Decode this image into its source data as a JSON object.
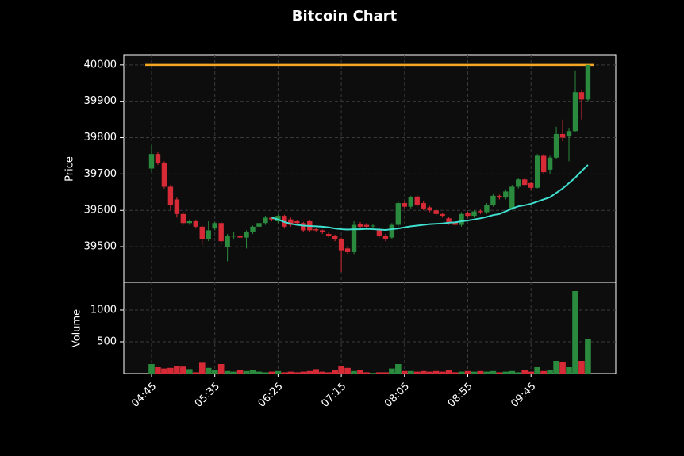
{
  "chart_data": {
    "type": "candlestick",
    "title": "Bitcoin Chart",
    "ylabel": "Price",
    "volume_ylabel": "Volume",
    "x": [
      "04:45",
      null,
      null,
      null,
      null,
      null,
      null,
      null,
      null,
      null,
      "05:35",
      null,
      null,
      null,
      null,
      null,
      null,
      null,
      null,
      null,
      "06:25",
      null,
      null,
      null,
      null,
      null,
      null,
      null,
      null,
      null,
      "07:15",
      null,
      null,
      null,
      null,
      null,
      null,
      null,
      null,
      null,
      "08:05",
      null,
      null,
      null,
      null,
      null,
      null,
      null,
      null,
      null,
      "08:55",
      null,
      null,
      null,
      null,
      null,
      null,
      null,
      null,
      null,
      "09:45",
      null,
      null,
      null,
      null,
      null,
      null,
      null,
      null,
      null
    ],
    "open": [
      39715,
      39755,
      39730,
      39665,
      39630,
      39590,
      39565,
      39570,
      39555,
      39520,
      39550,
      39565,
      39500,
      39528,
      39530,
      39525,
      39540,
      39555,
      39565,
      39580,
      39570,
      39585,
      39575,
      39570,
      39565,
      39570,
      39548,
      39545,
      39535,
      39530,
      39520,
      39495,
      39485,
      39562,
      39560,
      39556,
      39545,
      39530,
      39525,
      39560,
      39620,
      39610,
      39638,
      39620,
      39608,
      39600,
      39590,
      39578,
      39568,
      39560,
      39592,
      39585,
      39598,
      39595,
      39615,
      39640,
      39635,
      39605,
      39665,
      39685,
      39675,
      39662,
      39750,
      39712,
      39745,
      39810,
      39803,
      39818,
      39925,
      39905
    ],
    "high": [
      39780,
      39760,
      39735,
      39670,
      39635,
      39595,
      39575,
      39572,
      39558,
      39570,
      39568,
      39570,
      39535,
      39540,
      39535,
      39545,
      39558,
      39568,
      39585,
      39582,
      39590,
      39588,
      39580,
      39573,
      39568,
      39572,
      39552,
      39547,
      39540,
      39533,
      39525,
      39500,
      39570,
      39568,
      39565,
      39562,
      39550,
      39535,
      39565,
      39625,
      39624,
      39640,
      39642,
      39625,
      39612,
      39603,
      39593,
      39582,
      39570,
      39595,
      39596,
      39600,
      39602,
      39620,
      39645,
      39643,
      39658,
      39670,
      39690,
      39690,
      39678,
      39755,
      39755,
      39750,
      39830,
      39850,
      39825,
      39985,
      39930,
      40000
    ],
    "low": [
      39705,
      39725,
      39660,
      39600,
      39580,
      39560,
      39560,
      39550,
      39505,
      39515,
      39545,
      39505,
      39460,
      39522,
      39520,
      39495,
      39535,
      39550,
      39560,
      39570,
      39565,
      39550,
      39555,
      39560,
      39540,
      39540,
      39540,
      39535,
      39525,
      39515,
      39430,
      39480,
      39480,
      39550,
      39550,
      39552,
      39525,
      39515,
      39520,
      39555,
      39605,
      39605,
      39610,
      39600,
      39595,
      39585,
      39580,
      39560,
      39555,
      39555,
      39580,
      39580,
      39590,
      39590,
      39610,
      39630,
      39630,
      39600,
      39660,
      39665,
      39655,
      39660,
      39700,
      39700,
      39740,
      39790,
      39735,
      39815,
      39850,
      39900
    ],
    "close": [
      39755,
      39730,
      39665,
      39615,
      39590,
      39565,
      39570,
      39555,
      39520,
      39545,
      39565,
      39515,
      39530,
      39530,
      39525,
      39540,
      39555,
      39565,
      39580,
      39575,
      39585,
      39555,
      39560,
      39565,
      39545,
      39545,
      39545,
      39540,
      39530,
      39520,
      39490,
      39485,
      39560,
      39555,
      39555,
      39558,
      39530,
      39522,
      39560,
      39620,
      39610,
      39637,
      39615,
      39605,
      39600,
      39590,
      39585,
      39565,
      39560,
      39590,
      39585,
      39597,
      39595,
      39615,
      39640,
      39635,
      39652,
      39665,
      39685,
      39670,
      39662,
      39750,
      39705,
      39745,
      39810,
      39800,
      39818,
      39925,
      39905,
      40000
    ],
    "volume": [
      150,
      100,
      80,
      90,
      120,
      110,
      70,
      20,
      170,
      90,
      60,
      150,
      40,
      30,
      50,
      40,
      50,
      30,
      20,
      30,
      40,
      20,
      30,
      20,
      30,
      40,
      70,
      30,
      20,
      60,
      120,
      90,
      40,
      50,
      20,
      10,
      20,
      20,
      80,
      150,
      40,
      40,
      30,
      40,
      30,
      40,
      30,
      60,
      20,
      30,
      40,
      30,
      40,
      30,
      40,
      20,
      30,
      40,
      20,
      50,
      30,
      100,
      40,
      60,
      200,
      180,
      100,
      1300,
      200,
      540
    ],
    "moving_average": {
      "color": "#40e0d0",
      "values": [
        null,
        null,
        null,
        null,
        null,
        null,
        null,
        null,
        null,
        null,
        null,
        null,
        null,
        null,
        null,
        null,
        null,
        null,
        null,
        39580,
        39575,
        39568,
        39563,
        39560,
        39558,
        39557,
        39556,
        39555,
        39553,
        39550,
        39548,
        39547,
        39548,
        39548,
        39549,
        39548,
        39547,
        39546,
        39548,
        39550,
        39553,
        39556,
        39558,
        39560,
        39562,
        39563,
        39564,
        39566,
        39567,
        39570,
        39572,
        39575,
        39578,
        39582,
        39587,
        39590,
        39597,
        39605,
        39611,
        39614,
        39618,
        39624,
        39630,
        39636,
        39648,
        39660,
        39675,
        39690,
        39708,
        39725
      ]
    },
    "hline": {
      "value": 40000,
      "color": "#f5a623"
    },
    "up_color": "#2a8a3e",
    "down_color": "#d62b36",
    "ylim": [
      39402,
      40028
    ],
    "yticks": [
      39500,
      39600,
      39700,
      39800,
      39900,
      40000
    ],
    "volume_ylim": [
      0,
      1437
    ],
    "volume_yticks": [
      500,
      1000
    ],
    "grid": true
  }
}
